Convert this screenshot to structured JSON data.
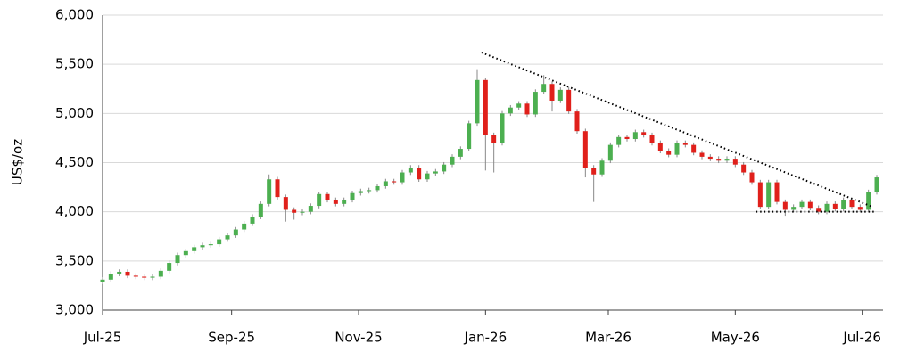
{
  "chart_data": {
    "type": "candlestick",
    "y_label": "US$/oz",
    "x": [
      0,
      4,
      8,
      12,
      16,
      20,
      24,
      28,
      32,
      36,
      40,
      44,
      48,
      52,
      56,
      60,
      64,
      68,
      72,
      76,
      80,
      84,
      88,
      92,
      96,
      100,
      104,
      108,
      112,
      116,
      120,
      124,
      128,
      132,
      136,
      140,
      144,
      148,
      152,
      156,
      160,
      164,
      168,
      172,
      176,
      180,
      184,
      188,
      192,
      196,
      200,
      204,
      208,
      212,
      216,
      220,
      224,
      228,
      232,
      236,
      240,
      244,
      248,
      252,
      256,
      260,
      264,
      268,
      272,
      276,
      280,
      284,
      288,
      292,
      296,
      300,
      304,
      308,
      312,
      316,
      320,
      324,
      328,
      332,
      336,
      340,
      344,
      348,
      352,
      356,
      360,
      364,
      368,
      372
    ],
    "open": [
      3290,
      3310,
      3370,
      3390,
      3350,
      3340,
      3330,
      3340,
      3400,
      3480,
      3560,
      3600,
      3640,
      3660,
      3670,
      3720,
      3760,
      3820,
      3880,
      3950,
      4080,
      4330,
      4150,
      4020,
      3990,
      4000,
      4060,
      4180,
      4120,
      4080,
      4120,
      4190,
      4210,
      4220,
      4260,
      4310,
      4300,
      4400,
      4450,
      4330,
      4390,
      4410,
      4480,
      4560,
      4640,
      4900,
      5340,
      4780,
      4700,
      5000,
      5060,
      5100,
      4990,
      5220,
      5300,
      5130,
      5240,
      5020,
      4820,
      4450,
      4380,
      4520,
      4680,
      4760,
      4740,
      4810,
      4780,
      4700,
      4620,
      4580,
      4700,
      4680,
      4600,
      4560,
      4540,
      4520,
      4540,
      4480,
      4400,
      4300,
      4050,
      4300,
      4100,
      4020,
      4050,
      4100,
      4040,
      4000,
      4080,
      4030,
      4120,
      4050,
      4020,
      4200
    ],
    "high": [
      3335,
      3395,
      3415,
      3415,
      3375,
      3365,
      3365,
      3425,
      3505,
      3585,
      3625,
      3665,
      3685,
      3695,
      3745,
      3785,
      3845,
      3905,
      3975,
      4105,
      4380,
      4355,
      4175,
      4045,
      4025,
      4085,
      4205,
      4205,
      4145,
      4145,
      4215,
      4235,
      4245,
      4285,
      4335,
      4335,
      4425,
      4475,
      4475,
      4415,
      4435,
      4505,
      4585,
      4665,
      4925,
      5450,
      5365,
      4805,
      5025,
      5085,
      5125,
      5125,
      5245,
      5390,
      5325,
      5265,
      5265,
      5045,
      4845,
      4475,
      4545,
      4705,
      4785,
      4785,
      4835,
      4835,
      4805,
      4725,
      4645,
      4725,
      4725,
      4705,
      4625,
      4585,
      4565,
      4565,
      4565,
      4505,
      4425,
      4325,
      4325,
      4325,
      4125,
      4075,
      4125,
      4125,
      4065,
      4105,
      4105,
      4145,
      4145,
      4075,
      4225,
      4375
    ],
    "low": [
      3265,
      3285,
      3345,
      3325,
      3315,
      3305,
      3305,
      3315,
      3375,
      3455,
      3535,
      3575,
      3615,
      3635,
      3645,
      3695,
      3735,
      3795,
      3855,
      3925,
      4055,
      4125,
      3900,
      3920,
      3965,
      3975,
      4035,
      4095,
      4055,
      4055,
      4095,
      4165,
      4185,
      4195,
      4235,
      4275,
      4275,
      4375,
      4305,
      4305,
      4365,
      4385,
      4455,
      4535,
      4615,
      4875,
      4420,
      4400,
      4675,
      4975,
      5035,
      4965,
      4965,
      5195,
      5020,
      5105,
      4995,
      4795,
      4350,
      4100,
      4355,
      4495,
      4655,
      4715,
      4715,
      4755,
      4675,
      4595,
      4555,
      4555,
      4655,
      4575,
      4535,
      4515,
      4495,
      4495,
      4455,
      4375,
      4275,
      4025,
      4025,
      4075,
      3960,
      3995,
      4025,
      4015,
      3975,
      3975,
      4005,
      4005,
      4025,
      3995,
      3995,
      4175
    ],
    "close": [
      3310,
      3370,
      3390,
      3350,
      3340,
      3330,
      3340,
      3400,
      3480,
      3560,
      3600,
      3640,
      3660,
      3670,
      3720,
      3760,
      3820,
      3880,
      3950,
      4080,
      4330,
      4150,
      4020,
      3990,
      4000,
      4060,
      4180,
      4120,
      4080,
      4120,
      4190,
      4210,
      4220,
      4260,
      4310,
      4300,
      4400,
      4450,
      4330,
      4390,
      4410,
      4480,
      4560,
      4640,
      4900,
      5340,
      4780,
      4700,
      5000,
      5060,
      5100,
      4990,
      5220,
      5300,
      5130,
      5240,
      5020,
      4820,
      4450,
      4380,
      4520,
      4680,
      4760,
      4740,
      4810,
      4780,
      4700,
      4620,
      4580,
      4700,
      4680,
      4600,
      4560,
      4540,
      4520,
      4540,
      4480,
      4400,
      4300,
      4050,
      4300,
      4100,
      4020,
      4050,
      4100,
      4040,
      4000,
      4080,
      4030,
      4120,
      4050,
      4020,
      4200,
      4350
    ],
    "up_color": "#4caf50",
    "down_color": "#e0201b",
    "wick_color": "#888888",
    "trendlines": [
      {
        "x": [
          182,
          370
        ],
        "y": [
          5620,
          4050
        ]
      },
      {
        "x": [
          314,
          371
        ],
        "y": [
          4000,
          4000
        ]
      }
    ],
    "xlim": [
      0,
      375
    ],
    "xticks": [
      {
        "value": 0,
        "label": "Jul-25"
      },
      {
        "value": 62,
        "label": "Sep-25"
      },
      {
        "value": 123,
        "label": "Nov-25"
      },
      {
        "value": 184,
        "label": "Jan-26"
      },
      {
        "value": 243,
        "label": "Mar-26"
      },
      {
        "value": 304,
        "label": "May-26"
      },
      {
        "value": 365,
        "label": "Jul-26"
      }
    ],
    "ylim": [
      3000,
      6000
    ],
    "yticks": [
      {
        "value": 3000,
        "label": "3,000"
      },
      {
        "value": 3500,
        "label": "3,500"
      },
      {
        "value": 4000,
        "label": "4,000"
      },
      {
        "value": 4500,
        "label": "4,500"
      },
      {
        "value": 5000,
        "label": "5,000"
      },
      {
        "value": 5500,
        "label": "5,500"
      },
      {
        "value": 6000,
        "label": "6,000"
      }
    ],
    "grid": true
  }
}
